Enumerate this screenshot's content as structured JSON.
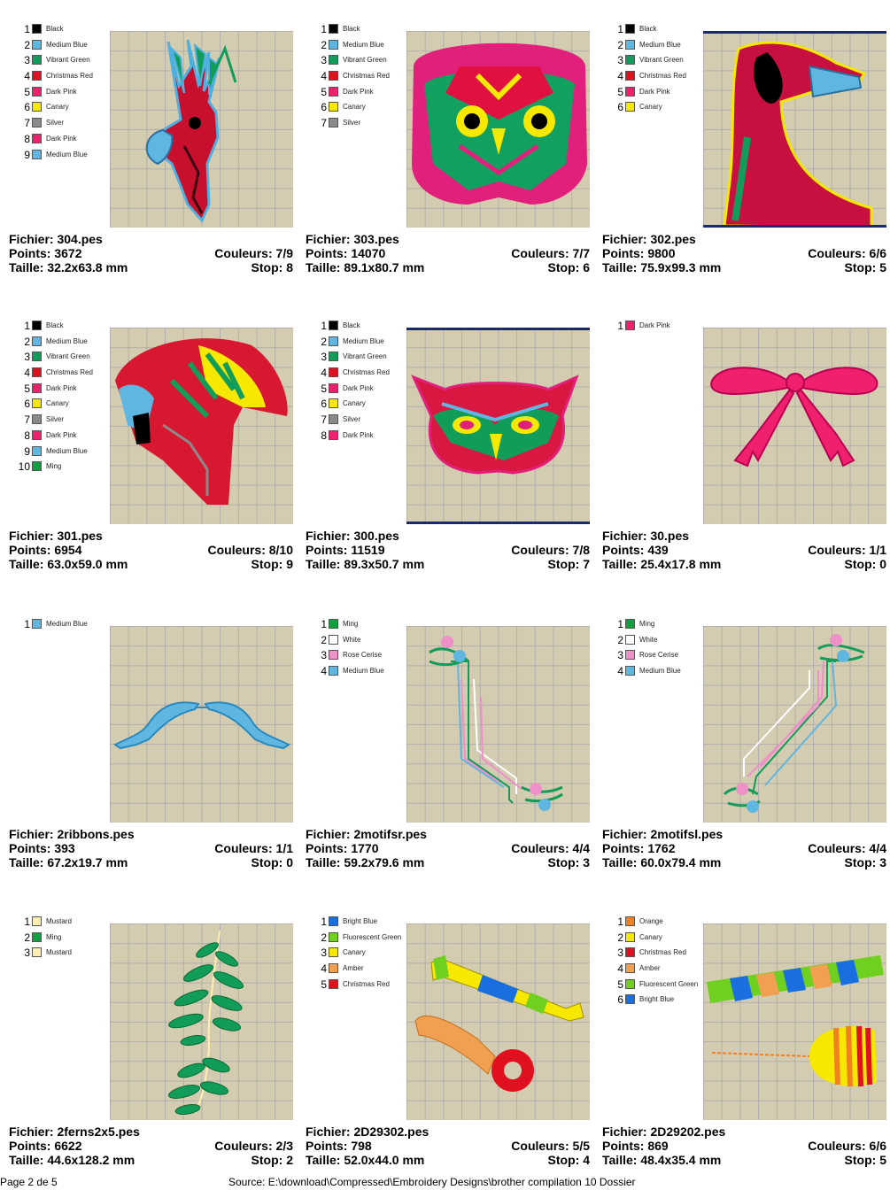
{
  "labels": {
    "file": "Fichier:",
    "points": "Points:",
    "colors": "Couleurs:",
    "size": "Taille:",
    "stop": "Stop:"
  },
  "designs": [
    {
      "file": "304.pes",
      "points": "3672",
      "colors": "7/9",
      "size": "32.2x63.8 mm",
      "stop": "8",
      "thread_colors": [
        {
          "num": "1",
          "name": "Black",
          "hex": "#000000"
        },
        {
          "num": "2",
          "name": "Medium Blue",
          "hex": "#5fb6e0"
        },
        {
          "num": "3",
          "name": "Vibrant Green",
          "hex": "#129c5a"
        },
        {
          "num": "4",
          "name": "Christmas Red",
          "hex": "#e01020"
        },
        {
          "num": "5",
          "name": "Dark Pink",
          "hex": "#f0206e"
        },
        {
          "num": "6",
          "name": "Canary",
          "hex": "#f6e800"
        },
        {
          "num": "7",
          "name": "Silver",
          "hex": "#8a8a8a"
        },
        {
          "num": "8",
          "name": "Dark Pink",
          "hex": "#f0206e"
        },
        {
          "num": "9",
          "name": "Medium Blue",
          "hex": "#5fb6e0"
        }
      ]
    },
    {
      "file": "303.pes",
      "points": "14070",
      "colors": "7/7",
      "size": "89.1x80.7 mm",
      "stop": "6",
      "thread_colors": [
        {
          "num": "1",
          "name": "Black",
          "hex": "#000000"
        },
        {
          "num": "2",
          "name": "Medium Blue",
          "hex": "#5fb6e0"
        },
        {
          "num": "3",
          "name": "Vibrant Green",
          "hex": "#129c5a"
        },
        {
          "num": "4",
          "name": "Christmas Red",
          "hex": "#e01020"
        },
        {
          "num": "5",
          "name": "Dark Pink",
          "hex": "#f0206e"
        },
        {
          "num": "6",
          "name": "Canary",
          "hex": "#f6e800"
        },
        {
          "num": "7",
          "name": "Silver",
          "hex": "#8a8a8a"
        }
      ]
    },
    {
      "file": "302.pes",
      "points": "9800",
      "colors": "6/6",
      "size": "75.9x99.3 mm",
      "stop": "5",
      "thread_colors": [
        {
          "num": "1",
          "name": "Black",
          "hex": "#000000"
        },
        {
          "num": "2",
          "name": "Medium Blue",
          "hex": "#5fb6e0"
        },
        {
          "num": "3",
          "name": "Vibrant Green",
          "hex": "#129c5a"
        },
        {
          "num": "4",
          "name": "Christmas Red",
          "hex": "#e01020"
        },
        {
          "num": "5",
          "name": "Dark Pink",
          "hex": "#f0206e"
        },
        {
          "num": "6",
          "name": "Canary",
          "hex": "#f6e800"
        }
      ]
    },
    {
      "file": "301.pes",
      "points": "6954",
      "colors": "8/10",
      "size": "63.0x59.0 mm",
      "stop": "9",
      "thread_colors": [
        {
          "num": "1",
          "name": "Black",
          "hex": "#000000"
        },
        {
          "num": "2",
          "name": "Medium Blue",
          "hex": "#5fb6e0"
        },
        {
          "num": "3",
          "name": "Vibrant Green",
          "hex": "#129c5a"
        },
        {
          "num": "4",
          "name": "Christmas Red",
          "hex": "#e01020"
        },
        {
          "num": "5",
          "name": "Dark Pink",
          "hex": "#f0206e"
        },
        {
          "num": "6",
          "name": "Canary",
          "hex": "#f6e800"
        },
        {
          "num": "7",
          "name": "Silver",
          "hex": "#8a8a8a"
        },
        {
          "num": "8",
          "name": "Dark Pink",
          "hex": "#f0206e"
        },
        {
          "num": "9",
          "name": "Medium Blue",
          "hex": "#5fb6e0"
        },
        {
          "num": "10",
          "name": "Ming",
          "hex": "#10a040"
        }
      ]
    },
    {
      "file": "300.pes",
      "points": "11519",
      "colors": "7/8",
      "size": "89.3x50.7 mm",
      "stop": "7",
      "thread_colors": [
        {
          "num": "1",
          "name": "Black",
          "hex": "#000000"
        },
        {
          "num": "2",
          "name": "Medium Blue",
          "hex": "#5fb6e0"
        },
        {
          "num": "3",
          "name": "Vibrant Green",
          "hex": "#129c5a"
        },
        {
          "num": "4",
          "name": "Christmas Red",
          "hex": "#e01020"
        },
        {
          "num": "5",
          "name": "Dark Pink",
          "hex": "#f0206e"
        },
        {
          "num": "6",
          "name": "Canary",
          "hex": "#f6e800"
        },
        {
          "num": "7",
          "name": "Silver",
          "hex": "#8a8a8a"
        },
        {
          "num": "8",
          "name": "Dark Pink",
          "hex": "#f0206e"
        }
      ]
    },
    {
      "file": "30.pes",
      "points": "439",
      "colors": "1/1",
      "size": "25.4x17.8 mm",
      "stop": "0",
      "thread_colors": [
        {
          "num": "1",
          "name": "Dark Pink",
          "hex": "#f0206e"
        }
      ]
    },
    {
      "file": "2ribbons.pes",
      "points": "393",
      "colors": "1/1",
      "size": "67.2x19.7 mm",
      "stop": "0",
      "thread_colors": [
        {
          "num": "1",
          "name": "Medium Blue",
          "hex": "#5fb6e0"
        }
      ]
    },
    {
      "file": "2motifsr.pes",
      "points": "1770",
      "colors": "4/4",
      "size": "59.2x79.6 mm",
      "stop": "3",
      "thread_colors": [
        {
          "num": "1",
          "name": "Ming",
          "hex": "#10a040"
        },
        {
          "num": "2",
          "name": "White",
          "hex": "#ffffff"
        },
        {
          "num": "3",
          "name": "Rose Cerise",
          "hex": "#f090c8"
        },
        {
          "num": "4",
          "name": "Medium Blue",
          "hex": "#5fb6e0"
        }
      ]
    },
    {
      "file": "2motifsl.pes",
      "points": "1762",
      "colors": "4/4",
      "size": "60.0x79.4 mm",
      "stop": "3",
      "thread_colors": [
        {
          "num": "1",
          "name": "Ming",
          "hex": "#10a040"
        },
        {
          "num": "2",
          "name": "White",
          "hex": "#ffffff"
        },
        {
          "num": "3",
          "name": "Rose Cerise",
          "hex": "#f090c8"
        },
        {
          "num": "4",
          "name": "Medium Blue",
          "hex": "#5fb6e0"
        }
      ]
    },
    {
      "file": "2ferns2x5.pes",
      "points": "6622",
      "colors": "2/3",
      "size": "44.6x128.2 mm",
      "stop": "2",
      "thread_colors": [
        {
          "num": "1",
          "name": "Mustard",
          "hex": "#fff0b0"
        },
        {
          "num": "2",
          "name": "Ming",
          "hex": "#10a040"
        },
        {
          "num": "3",
          "name": "Mustard",
          "hex": "#fff0b0"
        }
      ]
    },
    {
      "file": "2D29302.pes",
      "points": "798",
      "colors": "5/5",
      "size": "52.0x44.0 mm",
      "stop": "4",
      "thread_colors": [
        {
          "num": "1",
          "name": "Bright Blue",
          "hex": "#1a6fe0"
        },
        {
          "num": "2",
          "name": "Fluorescent Green",
          "hex": "#70d020"
        },
        {
          "num": "3",
          "name": "Canary",
          "hex": "#f6e800"
        },
        {
          "num": "4",
          "name": "Amber",
          "hex": "#f0a050"
        },
        {
          "num": "5",
          "name": "Christmas Red",
          "hex": "#e01020"
        }
      ]
    },
    {
      "file": "2D29202.pes",
      "points": "869",
      "colors": "6/6",
      "size": "48.4x35.4 mm",
      "stop": "5",
      "thread_colors": [
        {
          "num": "1",
          "name": "Orange",
          "hex": "#f08020"
        },
        {
          "num": "2",
          "name": "Canary",
          "hex": "#f6e800"
        },
        {
          "num": "3",
          "name": "Christmas Red",
          "hex": "#e01020"
        },
        {
          "num": "4",
          "name": "Amber",
          "hex": "#f0a050"
        },
        {
          "num": "5",
          "name": "Fluorescent Green",
          "hex": "#70d020"
        },
        {
          "num": "6",
          "name": "Bright Blue",
          "hex": "#1a6fe0"
        }
      ]
    }
  ],
  "footer": {
    "page": "Page 2 de 5",
    "source": "Source: E:\\download\\Compressed\\Embroidery Designs\\brother compilation 10 Dossier"
  }
}
